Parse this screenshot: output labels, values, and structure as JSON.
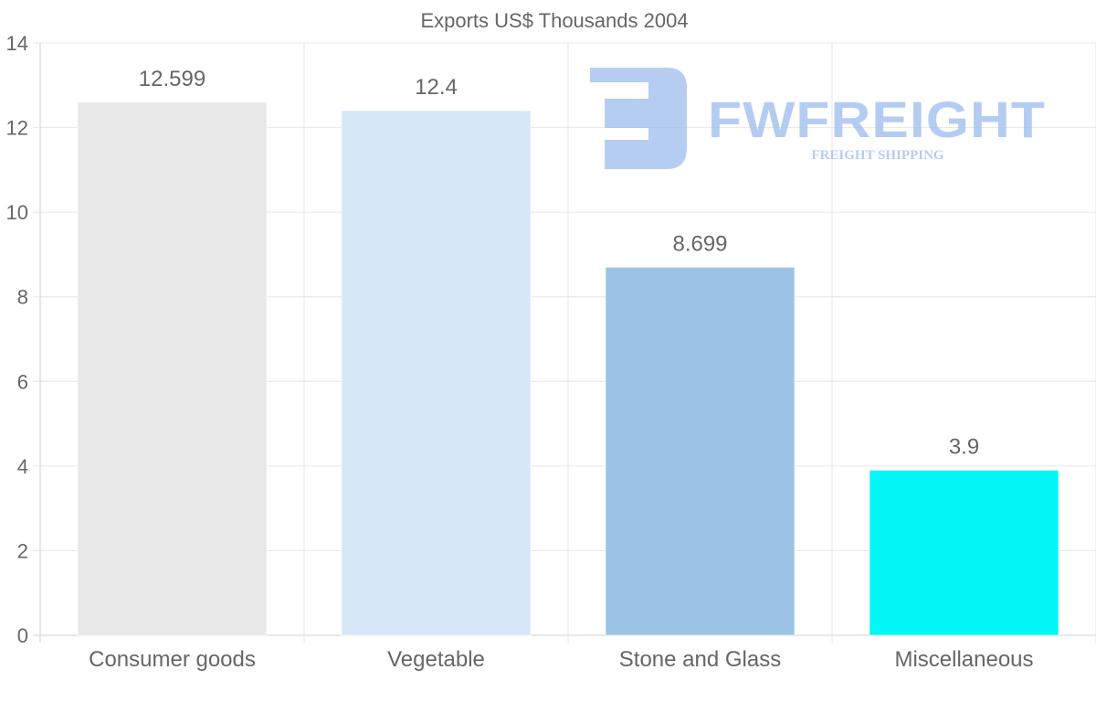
{
  "chart_data": {
    "type": "bar",
    "title": "Exports US$ Thousands 2004",
    "categories": [
      "Consumer goods",
      "Vegetable",
      "Stone and Glass",
      "Miscellaneous"
    ],
    "values": [
      12.599,
      12.4,
      8.699,
      3.9
    ],
    "data_labels": [
      "12.599",
      "12.4",
      "8.699",
      "3.9"
    ],
    "colors": [
      "#e8e8e8",
      "#d6e7f8",
      "#9bc3e6",
      "#04f7f7"
    ],
    "ylim": [
      0,
      14
    ],
    "yticks": [
      0,
      2,
      4,
      6,
      8,
      10,
      12,
      14
    ],
    "xlabel": "",
    "ylabel": "",
    "grid": true
  },
  "watermark": {
    "brand": "FWFREIGHT",
    "tagline": "FREIGHT SHIPPING",
    "color": "#9dbcee"
  }
}
